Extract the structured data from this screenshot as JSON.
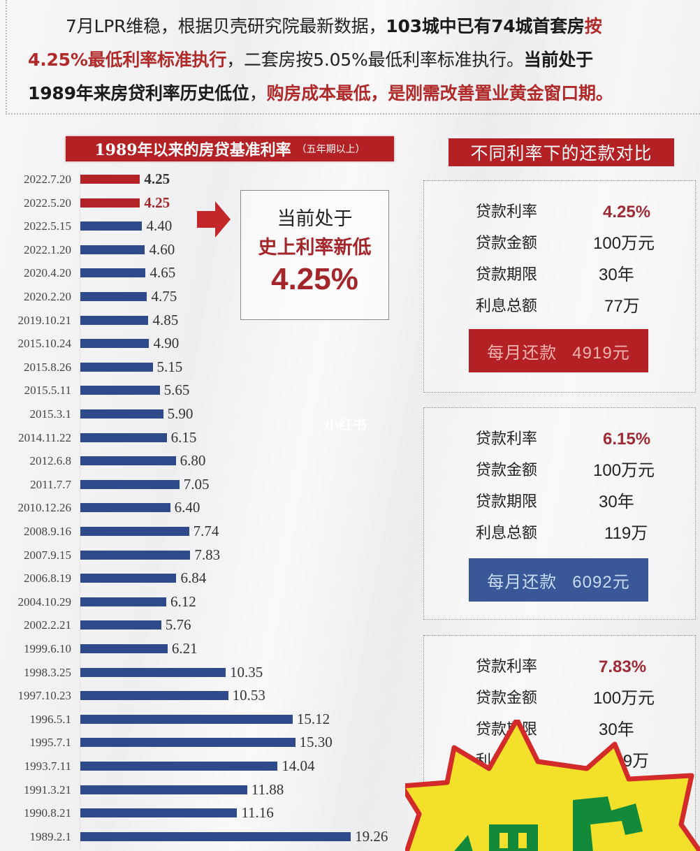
{
  "intro": {
    "line1_a": "7月LPR维稳，根据贝壳研究院最新数据，",
    "line1_b": "103城中已有74城首套房",
    "line1_c": "按",
    "line2_a": "4.25%最低利率标准执行",
    "line2_b": "，二套房按5.05%最低利率标准执行。",
    "line2_c": "当前处于",
    "line3_a": "1989年来房贷利率历史低位",
    "line3_b": "，",
    "line3_c": "购房成本最低，是刚需改善置业黄金窗口期。"
  },
  "chart_title": {
    "main": "1989年以来的房贷基准利率",
    "sub": "（五年期以上）"
  },
  "callout": {
    "line1": "当前处于",
    "line2": "史上利率新低",
    "value": "4.25%"
  },
  "watermark": "小红书",
  "comparison": {
    "title": "不同利率下的还款对比",
    "cards": [
      {
        "rows": [
          {
            "label": "贷款利率",
            "value": "4.25%"
          },
          {
            "label": "贷款金额",
            "value": "100万元"
          },
          {
            "label": "贷款期限",
            "value": "30年"
          },
          {
            "label": "利息总额",
            "value": "77万"
          }
        ],
        "pay_label": "每月还款",
        "pay_amount": "4919元",
        "pay_color": "#b32125"
      },
      {
        "rows": [
          {
            "label": "贷款利率",
            "value": "6.15%"
          },
          {
            "label": "贷款金额",
            "value": "100万元"
          },
          {
            "label": "贷款期限",
            "value": "30年"
          },
          {
            "label": "利息总额",
            "value": "119万"
          }
        ],
        "pay_label": "每月还款",
        "pay_amount": "6092元",
        "pay_color": "#3a5798"
      },
      {
        "rows": [
          {
            "label": "贷款利率",
            "value": "7.83%"
          },
          {
            "label": "贷款金额",
            "value": "100万元"
          },
          {
            "label": "贷款期限",
            "value": "30年"
          },
          {
            "label": "利息总额",
            "value": "159万"
          }
        ]
      }
    ]
  },
  "colors": {
    "accent_red": "#b32125",
    "bar_blue": "#2e4a8a",
    "pay_blue": "#3a5798",
    "rate_red": "#9e2a35"
  },
  "chart_data": {
    "type": "bar",
    "orientation": "horizontal",
    "title": "1989年以来的房贷基准利率（五年期以上）",
    "xlabel": "",
    "ylabel": "",
    "grid": false,
    "highlighted": [
      "2022.7.20",
      "2022.5.20"
    ],
    "categories": [
      "2022.7.20",
      "2022.5.20",
      "2022.5.15",
      "2022.1.20",
      "2020.4.20",
      "2020.2.20",
      "2019.10.21",
      "2015.10.24",
      "2015.8.26",
      "2015.5.11",
      "2015.3.1",
      "2014.11.22",
      "2012.6.8",
      "2011.7.7",
      "2010.12.26",
      "2008.9.16",
      "2007.9.15",
      "2006.8.19",
      "2004.10.29",
      "2002.2.21",
      "1999.6.10",
      "1998.3.25",
      "1997.10.23",
      "1996.5.1",
      "1995.7.1",
      "1993.7.11",
      "1991.3.21",
      "1990.8.21",
      "1989.2.1"
    ],
    "values": [
      4.25,
      4.25,
      4.4,
      4.6,
      4.65,
      4.75,
      4.85,
      4.9,
      5.15,
      5.65,
      5.9,
      6.15,
      6.8,
      7.05,
      6.4,
      7.74,
      7.83,
      6.84,
      6.12,
      5.76,
      6.21,
      10.35,
      10.53,
      15.12,
      15.3,
      14.04,
      11.88,
      11.16,
      19.26
    ],
    "labels": [
      "4.25",
      "4.25",
      "4.40",
      "4.60",
      "4.65",
      "4.75",
      "4.85",
      "4.90",
      "5.15",
      "5.65",
      "5.90",
      "6.15",
      "6.80",
      "7.05",
      "6.40",
      "7.74",
      "7.83",
      "6.84",
      "6.12",
      "5.76",
      "6.21",
      "10.35",
      "10.53",
      "15.12",
      "15.30",
      "14.04",
      "11.88",
      "11.16",
      "19.26"
    ]
  }
}
